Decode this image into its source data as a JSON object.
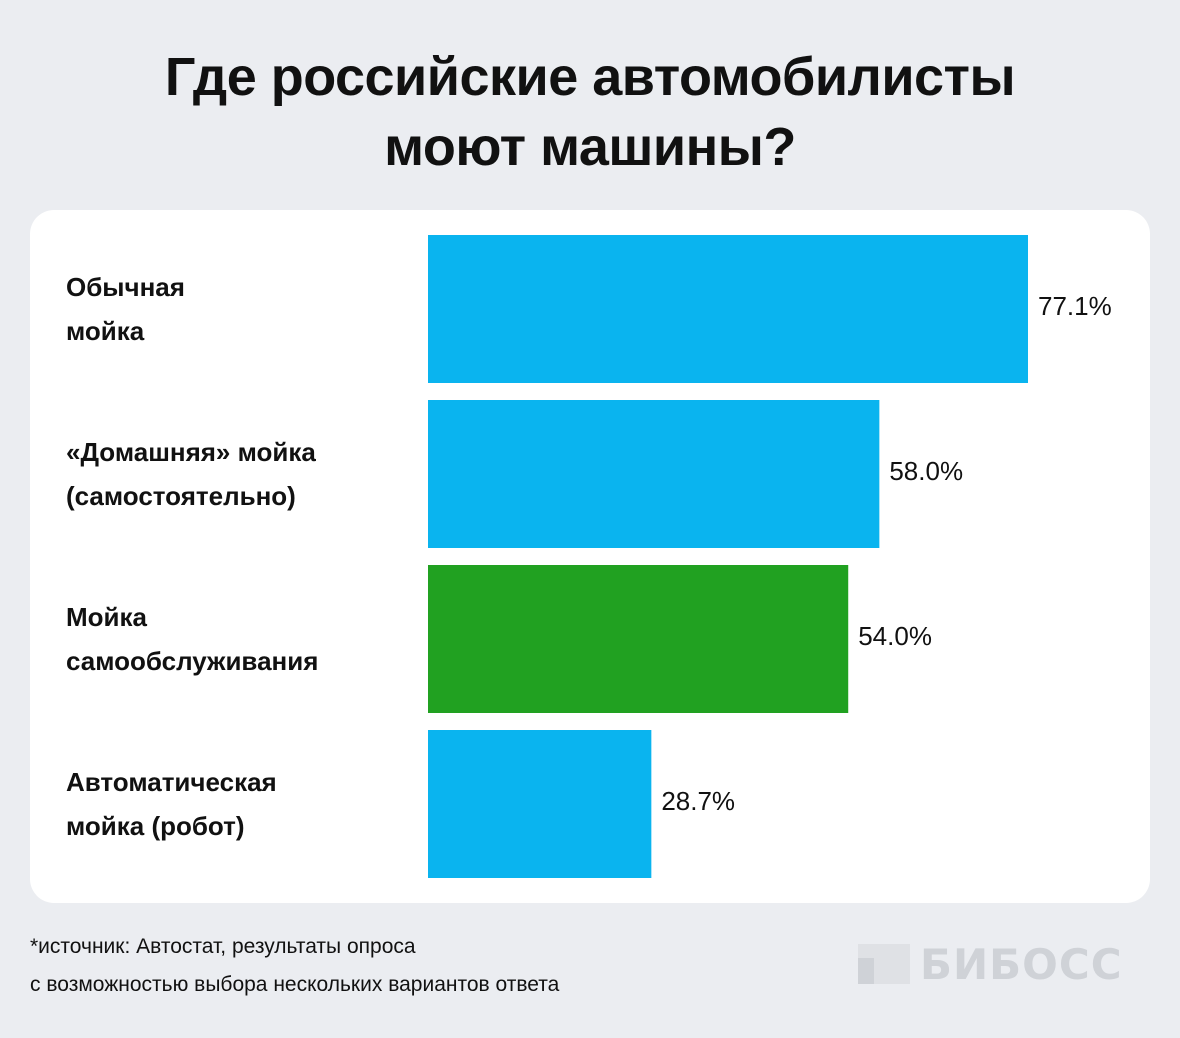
{
  "chart_data": {
    "type": "bar",
    "orientation": "horizontal",
    "title": "Где российские автомобилисты\nмоют машины?",
    "categories": [
      "Обычная\nмойка",
      "«Домашняя» мойка\n(самостоятельно)",
      "Мойка\nсамообслуживания",
      "Автоматическая\nмойка (робот)"
    ],
    "values": [
      77.1,
      58.0,
      54.0,
      28.7
    ],
    "value_labels": [
      "77.1%",
      "58.0%",
      "54.0%",
      "28.7%"
    ],
    "colors": [
      "#0ab4ef",
      "#0ab4ef",
      "#21a121",
      "#0ab4ef"
    ],
    "footnote": "*источник: Автостат, результаты опроса\nс возможностью выбора нескольких вариантов ответа",
    "logo": "БИБОСС"
  }
}
